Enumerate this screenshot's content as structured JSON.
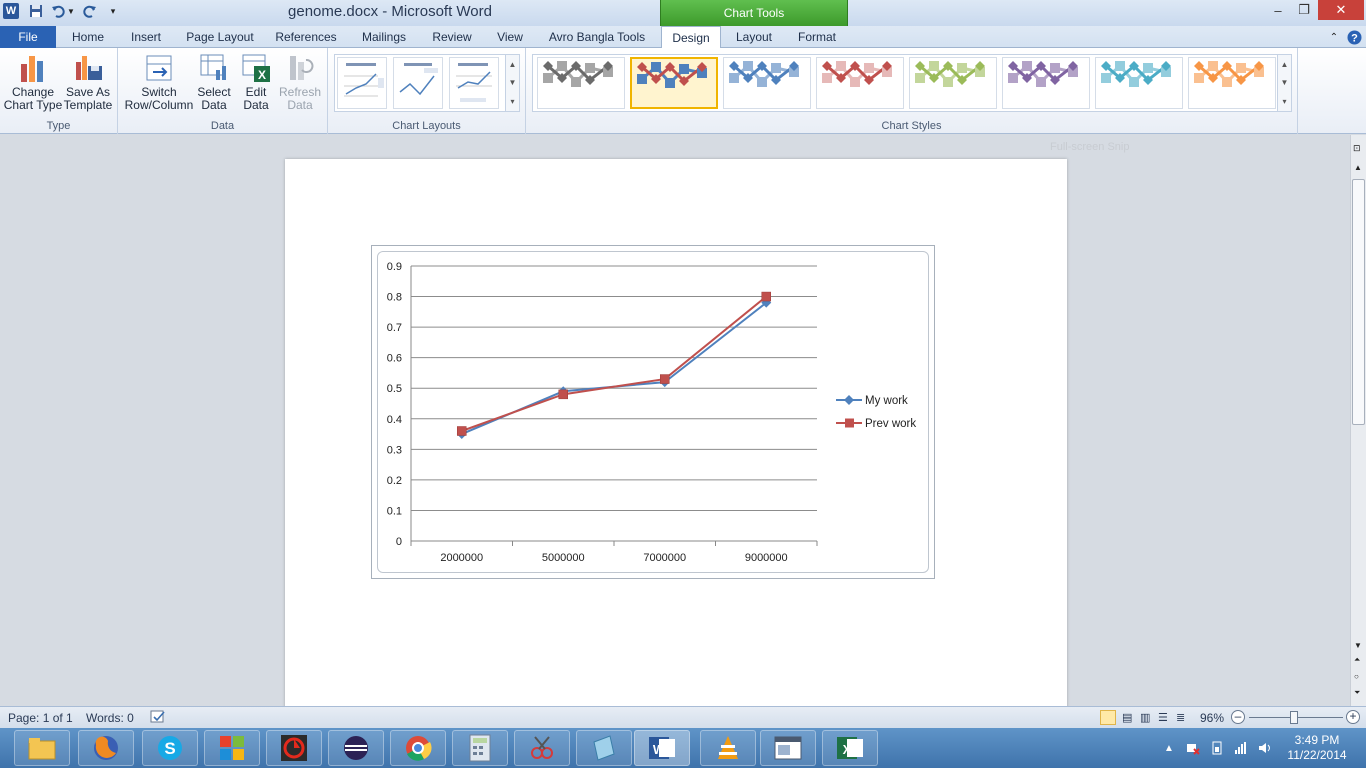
{
  "window": {
    "doc_title": "genome.docx  -  Microsoft Word",
    "contextual_tab": "Chart Tools",
    "app_icon": "W"
  },
  "tabs": [
    {
      "label": "File"
    },
    {
      "label": "Home"
    },
    {
      "label": "Insert"
    },
    {
      "label": "Page Layout"
    },
    {
      "label": "References"
    },
    {
      "label": "Mailings"
    },
    {
      "label": "Review"
    },
    {
      "label": "View"
    },
    {
      "label": "Avro Bangla Tools"
    },
    {
      "label": "Design"
    },
    {
      "label": "Layout"
    },
    {
      "label": "Format"
    }
  ],
  "ribbon": {
    "type": {
      "label": "Type",
      "change_chart_type": "Change\nChart Type",
      "save_as_template": "Save As\nTemplate"
    },
    "data": {
      "label": "Data",
      "switch_row_column": "Switch\nRow/Column",
      "select_data": "Select\nData",
      "edit_data": "Edit\nData",
      "refresh_data": "Refresh\nData"
    },
    "chart_layouts": {
      "label": "Chart Layouts"
    },
    "chart_styles": {
      "label": "Chart Styles",
      "colors": [
        "#6b6b6b",
        "#c0504d",
        "#4f81bd",
        "#c0504d",
        "#9bbb59",
        "#8064a2",
        "#4bacc6",
        "#f79646"
      ],
      "light": [
        "#a6a6a6",
        "#4f81bd",
        "#95b3d7",
        "#e6b9b8",
        "#c3d69b",
        "#b3a2c7",
        "#93cddd",
        "#fac090"
      ],
      "selected_index": 1
    }
  },
  "overlay": {
    "snip_text": "Full-screen Snip"
  },
  "chart_data": {
    "type": "line",
    "categories": [
      "2000000",
      "5000000",
      "7000000",
      "9000000"
    ],
    "series": [
      {
        "name": "My work",
        "values": [
          0.35,
          0.49,
          0.52,
          0.78
        ],
        "color": "#4f81bd",
        "marker": "diamond"
      },
      {
        "name": "Prev work",
        "values": [
          0.36,
          0.48,
          0.53,
          0.8
        ],
        "color": "#c0504d",
        "marker": "square"
      }
    ],
    "y_ticks": [
      "0",
      "0.1",
      "0.2",
      "0.3",
      "0.4",
      "0.5",
      "0.6",
      "0.7",
      "0.8",
      "0.9"
    ],
    "ylim": [
      0,
      0.9
    ],
    "grid": true,
    "legend_position": "right"
  },
  "status": {
    "page": "Page: 1 of 1",
    "words": "Words: 0",
    "zoom": "96%"
  },
  "taskbar": {
    "time": "3:49 PM",
    "date": "11/22/2014"
  }
}
